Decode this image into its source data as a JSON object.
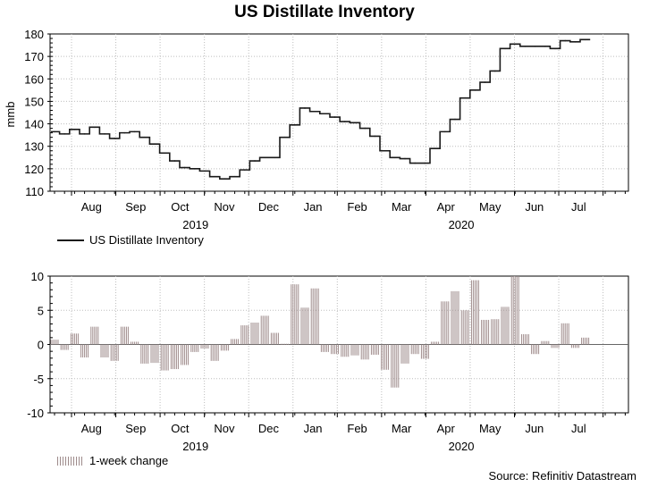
{
  "title": "US Distillate Inventory",
  "source": "Source: Refinitiv Datastream",
  "colors": {
    "line": "#1a1a1a",
    "bar": "#9e8b8b",
    "grid": "#bdbdbd"
  },
  "chart_data": [
    {
      "type": "line",
      "title": "US Distillate Inventory",
      "ylabel": "mmb",
      "ylim": [
        110,
        180
      ],
      "yticks": [
        110,
        120,
        130,
        140,
        150,
        160,
        170,
        180
      ],
      "months": [
        "Aug",
        "Sep",
        "Oct",
        "Nov",
        "Dec",
        "Jan",
        "Feb",
        "Mar",
        "Apr",
        "May",
        "Jun",
        "Jul"
      ],
      "years": [
        {
          "label": "2019",
          "month_index": 2.8
        },
        {
          "label": "2020",
          "month_index": 8.8
        }
      ],
      "legend": "US Distillate Inventory",
      "series": [
        {
          "name": "US Distillate Inventory",
          "values": [
            136.5,
            135.5,
            137.5,
            135.5,
            138.5,
            135.5,
            133.5,
            136,
            136.5,
            134,
            131,
            127,
            123.5,
            120.5,
            120,
            119,
            116.5,
            115.5,
            116.5,
            119.5,
            123.5,
            125,
            125,
            134,
            139.5,
            147,
            145.5,
            144.5,
            143,
            141,
            140.5,
            138,
            134.5,
            128,
            125,
            124.5,
            122.5,
            122.5,
            129,
            136.5,
            142,
            151.5,
            155,
            158.5,
            163.5,
            173.5,
            175.5,
            174.5,
            174.5,
            174.5,
            173.5,
            177,
            176.5,
            177.5
          ]
        }
      ]
    },
    {
      "type": "bar",
      "title": "1-week change",
      "ylim": [
        -10,
        10
      ],
      "yticks": [
        -10,
        -5,
        0,
        5,
        10
      ],
      "months": [
        "Aug",
        "Sep",
        "Oct",
        "Nov",
        "Dec",
        "Jan",
        "Feb",
        "Mar",
        "Apr",
        "May",
        "Jun",
        "Jul"
      ],
      "years": [
        {
          "label": "2019",
          "month_index": 2.8
        },
        {
          "label": "2020",
          "month_index": 8.8
        }
      ],
      "legend": "1-week change",
      "series": [
        {
          "name": "1-week change",
          "values": [
            0.7,
            -0.8,
            1.6,
            -1.9,
            2.6,
            -1.9,
            -2.4,
            2.6,
            0.4,
            -2.8,
            -2.7,
            -3.8,
            -3.6,
            -3.0,
            -1.1,
            -0.6,
            -2.4,
            -0.9,
            0.8,
            2.8,
            3.2,
            4.2,
            1.7,
            0.1,
            8.8,
            5.4,
            8.2,
            -1.1,
            -1.4,
            -1.8,
            -1.6,
            -2.2,
            -1.5,
            -3.7,
            -6.3,
            -2.8,
            -1.4,
            -2.1,
            0.4,
            6.3,
            7.8,
            5.0,
            9.4,
            3.6,
            3.7,
            5.5,
            10.0,
            1.5,
            -1.4,
            0.5,
            -0.5,
            3.1,
            -0.5,
            1.0
          ]
        }
      ]
    }
  ]
}
